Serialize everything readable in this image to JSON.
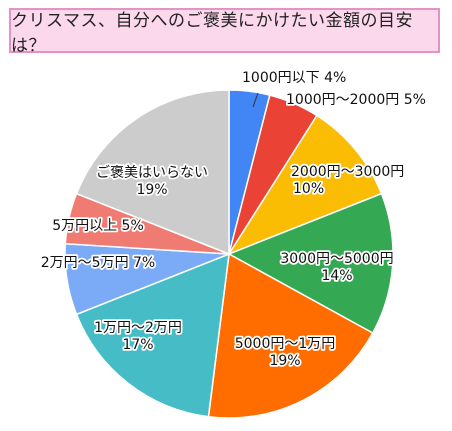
{
  "title": "クリスマス、自分へのご褒美にかけたい金額の目安は？",
  "chart_data": {
    "type": "pie",
    "title": "クリスマス、自分へのご褒美にかけたい金額の目安は？",
    "slices": [
      {
        "label": "1000円以下",
        "value": 4,
        "pct": "4%",
        "color": "#4285f4"
      },
      {
        "label": "1000円～2000円",
        "value": 5,
        "pct": "5%",
        "color": "#ea4335"
      },
      {
        "label": "2000円～3000円",
        "value": 10,
        "pct": "10%",
        "color": "#fbbc04"
      },
      {
        "label": "3000円～5000円",
        "value": 14,
        "pct": "14%",
        "color": "#34a853"
      },
      {
        "label": "5000円～1万円",
        "value": 19,
        "pct": "19%",
        "color": "#ff6d01"
      },
      {
        "label": "1万円～2万円",
        "value": 17,
        "pct": "17%",
        "color": "#46bdc6"
      },
      {
        "label": "2万円～5万円",
        "value": 7,
        "pct": "7%",
        "color": "#7baaf7"
      },
      {
        "label": "5万円以上",
        "value": 5,
        "pct": "5%",
        "color": "#f07b72"
      },
      {
        "label": "ご褒美はいらない",
        "value": 19,
        "pct": "19%",
        "color": "#cccccc"
      }
    ]
  }
}
